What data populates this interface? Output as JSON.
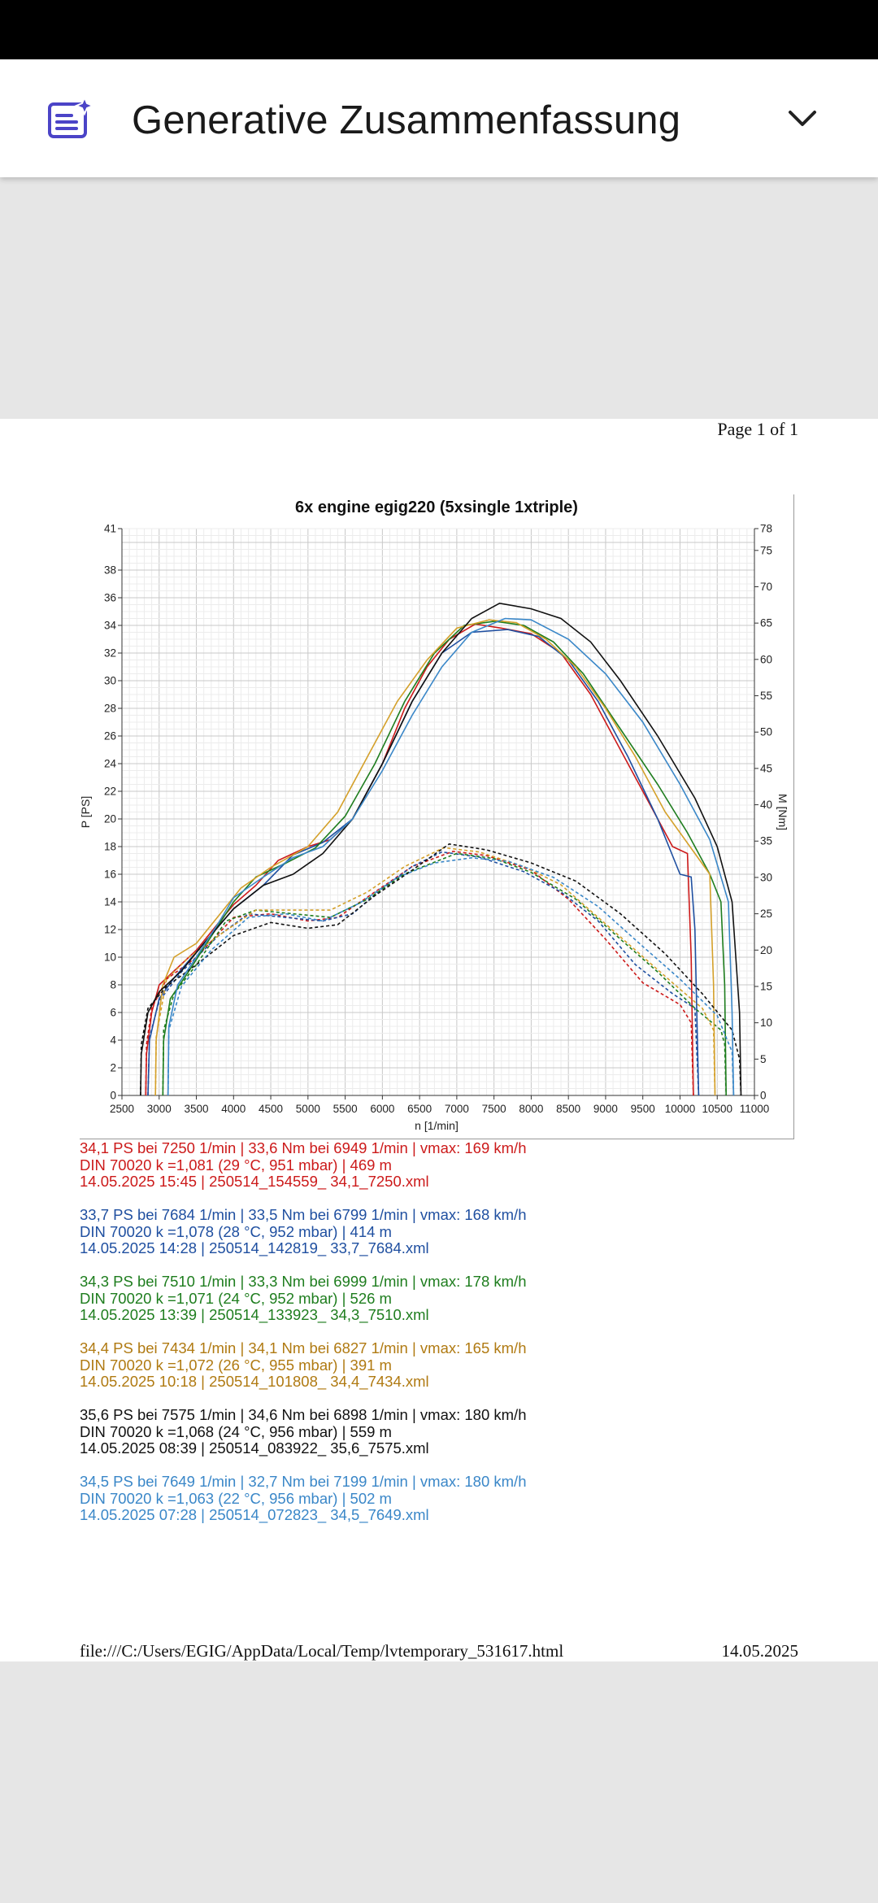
{
  "header": {
    "title": "Generative Zusammenfassung"
  },
  "document": {
    "page_label": "Page 1 of 1",
    "footer_path": "file:///C:/Users/EGIG/AppData/Local/Temp/lvtemporary_531617.html",
    "footer_date": "14.05.2025",
    "entries": [
      {
        "color": "#cc1a1a",
        "line1": "34,1 PS bei 7250 1/min | 33,6 Nm bei 6949 1/min | vmax: 169 km/h",
        "line2": "DIN 70020 k =1,081 (29 °C, 951 mbar) | 469 m",
        "line3": "14.05.2025 15:45 | 250514_154559_ 34,1_7250.xml"
      },
      {
        "color": "#1f4fa0",
        "line1": "33,7 PS bei 7684 1/min | 33,5 Nm bei 6799 1/min | vmax: 168 km/h",
        "line2": "DIN 70020 k =1,078 (28 °C, 952 mbar) | 414 m",
        "line3": "14.05.2025 14:28 | 250514_142819_ 33,7_7684.xml"
      },
      {
        "color": "#1e7d1e",
        "line1": "34,3 PS bei 7510 1/min | 33,3 Nm bei 6999 1/min | vmax: 178 km/h",
        "line2": "DIN 70020 k =1,071 (24 °C, 952 mbar) | 526 m",
        "line3": "14.05.2025 13:39 | 250514_133923_ 34,3_7510.xml"
      },
      {
        "color": "#b07a12",
        "line1": "34,4 PS bei 7434 1/min | 34,1 Nm bei 6827 1/min | vmax: 165 km/h",
        "line2": "DIN 70020 k =1,072 (26 °C, 955 mbar) | 391 m",
        "line3": "14.05.2025 10:18 | 250514_101808_ 34,4_7434.xml"
      },
      {
        "color": "#111111",
        "line1": "35,6 PS bei 7575 1/min | 34,6 Nm bei 6898 1/min | vmax: 180 km/h",
        "line2": "DIN 70020 k =1,068 (24 °C, 956 mbar) | 559 m",
        "line3": "14.05.2025 08:39 | 250514_083922_ 35,6_7575.xml"
      },
      {
        "color": "#3a87c8",
        "line1": "34,5 PS bei 7649 1/min | 32,7 Nm bei 7199 1/min | vmax: 180 km/h",
        "line2": "DIN 70020 k =1,063 (22 °C, 956 mbar) | 502 m",
        "line3": "14.05.2025 07:28 | 250514_072823_ 34,5_7649.xml"
      }
    ]
  },
  "chart_data": {
    "type": "line",
    "title": "6x engine egig220 (5xsingle 1xtriple)",
    "xlabel": "n [1/min]",
    "ylabel": "P [PS]",
    "y2label": "M [Nm]",
    "xlim": [
      2500,
      11000
    ],
    "ylim": [
      0,
      41
    ],
    "y2lim": [
      0,
      78
    ],
    "x_ticks": [
      2500,
      3000,
      3500,
      4000,
      4500,
      5000,
      5500,
      6000,
      6500,
      7000,
      7500,
      8000,
      8500,
      9000,
      9500,
      10000,
      10500,
      11000
    ],
    "y_ticks": [
      0,
      2,
      4,
      6,
      8,
      10,
      12,
      14,
      16,
      18,
      20,
      22,
      24,
      26,
      28,
      30,
      32,
      34,
      36,
      38,
      41
    ],
    "y2_ticks": [
      0,
      5,
      10,
      15,
      20,
      25,
      30,
      35,
      40,
      45,
      50,
      55,
      60,
      65,
      70,
      75,
      78
    ],
    "grid": true,
    "series": [
      {
        "color": "#cc1a1a",
        "power": [
          [
            2820,
            0
          ],
          [
            2830,
            3
          ],
          [
            2900,
            6
          ],
          [
            3000,
            8
          ],
          [
            3200,
            9
          ],
          [
            3500,
            10.5
          ],
          [
            3800,
            12.5
          ],
          [
            4000,
            13.8
          ],
          [
            4300,
            15.2
          ],
          [
            4600,
            17
          ],
          [
            5000,
            18
          ],
          [
            5300,
            18.5
          ],
          [
            5600,
            20
          ],
          [
            6000,
            24
          ],
          [
            6300,
            28
          ],
          [
            6600,
            31
          ],
          [
            6900,
            33
          ],
          [
            7250,
            34.1
          ],
          [
            7600,
            33.8
          ],
          [
            8000,
            33.4
          ],
          [
            8400,
            32
          ],
          [
            8800,
            29
          ],
          [
            9200,
            25
          ],
          [
            9600,
            21
          ],
          [
            9900,
            18
          ],
          [
            10100,
            17.5
          ],
          [
            10150,
            10
          ],
          [
            10180,
            0
          ]
        ],
        "torque": [
          [
            2820,
            0
          ],
          [
            2830,
            7
          ],
          [
            2900,
            12
          ],
          [
            3100,
            16
          ],
          [
            3500,
            19
          ],
          [
            4000,
            24.5
          ],
          [
            4500,
            25
          ],
          [
            5000,
            24
          ],
          [
            5400,
            24.5
          ],
          [
            5900,
            28
          ],
          [
            6400,
            31.5
          ],
          [
            6949,
            33.6
          ],
          [
            7400,
            33
          ],
          [
            8000,
            31
          ],
          [
            8500,
            27
          ],
          [
            9000,
            21.5
          ],
          [
            9500,
            15.5
          ],
          [
            10000,
            12.5
          ],
          [
            10150,
            10
          ],
          [
            10180,
            0
          ]
        ]
      },
      {
        "color": "#1f4fa0",
        "power": [
          [
            2850,
            0
          ],
          [
            2870,
            4
          ],
          [
            3000,
            7
          ],
          [
            3200,
            8.5
          ],
          [
            3600,
            11
          ],
          [
            4000,
            13.5
          ],
          [
            4400,
            15.2
          ],
          [
            4800,
            17.4
          ],
          [
            5200,
            18.3
          ],
          [
            5600,
            20
          ],
          [
            6000,
            24
          ],
          [
            6400,
            28.5
          ],
          [
            6800,
            32
          ],
          [
            7200,
            33.5
          ],
          [
            7684,
            33.7
          ],
          [
            8100,
            33.2
          ],
          [
            8500,
            31.5
          ],
          [
            8900,
            28.5
          ],
          [
            9300,
            24.5
          ],
          [
            9700,
            20
          ],
          [
            10000,
            16
          ],
          [
            10150,
            15.8
          ],
          [
            10200,
            12
          ],
          [
            10250,
            0
          ]
        ],
        "torque": [
          [
            2850,
            0
          ],
          [
            2870,
            8
          ],
          [
            3000,
            13
          ],
          [
            3300,
            17
          ],
          [
            3800,
            22
          ],
          [
            4200,
            25
          ],
          [
            4700,
            24.5
          ],
          [
            5200,
            24
          ],
          [
            5600,
            25
          ],
          [
            6000,
            28.5
          ],
          [
            6400,
            31.5
          ],
          [
            6799,
            33.5
          ],
          [
            7300,
            32.8
          ],
          [
            7900,
            30.8
          ],
          [
            8400,
            28
          ],
          [
            8900,
            24
          ],
          [
            9400,
            18
          ],
          [
            9900,
            14
          ],
          [
            10200,
            12
          ],
          [
            10250,
            0
          ]
        ]
      },
      {
        "color": "#1e7d1e",
        "power": [
          [
            3050,
            0
          ],
          [
            3060,
            4
          ],
          [
            3150,
            7
          ],
          [
            3400,
            9
          ],
          [
            3700,
            11.5
          ],
          [
            4000,
            14
          ],
          [
            4300,
            15.8
          ],
          [
            4700,
            16.8
          ],
          [
            5100,
            17.9
          ],
          [
            5500,
            20.2
          ],
          [
            5900,
            24
          ],
          [
            6300,
            28.5
          ],
          [
            6700,
            32
          ],
          [
            7100,
            34
          ],
          [
            7510,
            34.3
          ],
          [
            7900,
            34
          ],
          [
            8300,
            32.8
          ],
          [
            8700,
            30.5
          ],
          [
            9200,
            26.5
          ],
          [
            9700,
            22.5
          ],
          [
            10100,
            19
          ],
          [
            10400,
            16
          ],
          [
            10550,
            14
          ],
          [
            10600,
            8
          ],
          [
            10620,
            0
          ]
        ],
        "torque": [
          [
            3050,
            0
          ],
          [
            3060,
            9
          ],
          [
            3200,
            14
          ],
          [
            3500,
            18
          ],
          [
            3900,
            24
          ],
          [
            4300,
            25.5
          ],
          [
            4800,
            25
          ],
          [
            5300,
            24.5
          ],
          [
            5800,
            27
          ],
          [
            6300,
            30.5
          ],
          [
            6999,
            33.3
          ],
          [
            7500,
            32.6
          ],
          [
            8000,
            30.7
          ],
          [
            8600,
            27
          ],
          [
            9200,
            21.5
          ],
          [
            9700,
            17
          ],
          [
            10200,
            12
          ],
          [
            10550,
            9
          ],
          [
            10600,
            7
          ],
          [
            10620,
            0
          ]
        ]
      },
      {
        "color": "#d4a02a",
        "power": [
          [
            2950,
            0
          ],
          [
            2960,
            4
          ],
          [
            3050,
            8
          ],
          [
            3200,
            10
          ],
          [
            3500,
            11
          ],
          [
            3800,
            13
          ],
          [
            4100,
            15
          ],
          [
            4500,
            16.5
          ],
          [
            5000,
            18
          ],
          [
            5400,
            20.5
          ],
          [
            5800,
            24.5
          ],
          [
            6200,
            28.5
          ],
          [
            6600,
            31.5
          ],
          [
            7000,
            33.8
          ],
          [
            7434,
            34.4
          ],
          [
            7800,
            34.2
          ],
          [
            8200,
            33
          ],
          [
            8600,
            31
          ],
          [
            9000,
            28
          ],
          [
            9400,
            24.5
          ],
          [
            9800,
            20.5
          ],
          [
            10200,
            17.5
          ],
          [
            10400,
            16
          ],
          [
            10450,
            8
          ],
          [
            10470,
            0
          ]
        ],
        "torque": [
          [
            2950,
            0
          ],
          [
            2960,
            8
          ],
          [
            3100,
            16
          ],
          [
            3400,
            19
          ],
          [
            3800,
            22
          ],
          [
            4300,
            25.5
          ],
          [
            4800,
            25.5
          ],
          [
            5300,
            25.5
          ],
          [
            5800,
            28
          ],
          [
            6300,
            31.5
          ],
          [
            6827,
            34.1
          ],
          [
            7300,
            33.5
          ],
          [
            7900,
            31.5
          ],
          [
            8400,
            29
          ],
          [
            8900,
            24.5
          ],
          [
            9400,
            20
          ],
          [
            9900,
            15.5
          ],
          [
            10300,
            12
          ],
          [
            10450,
            9
          ],
          [
            10470,
            0
          ]
        ]
      },
      {
        "color": "#111111",
        "power": [
          [
            2750,
            0
          ],
          [
            2760,
            3
          ],
          [
            2850,
            6
          ],
          [
            3000,
            7.5
          ],
          [
            3300,
            9
          ],
          [
            3600,
            11
          ],
          [
            4000,
            13.5
          ],
          [
            4400,
            15.2
          ],
          [
            4800,
            16
          ],
          [
            5200,
            17.5
          ],
          [
            5600,
            20
          ],
          [
            6000,
            24
          ],
          [
            6400,
            28.5
          ],
          [
            6800,
            32
          ],
          [
            7200,
            34.5
          ],
          [
            7575,
            35.6
          ],
          [
            8000,
            35.2
          ],
          [
            8400,
            34.5
          ],
          [
            8800,
            32.8
          ],
          [
            9200,
            30
          ],
          [
            9700,
            26
          ],
          [
            10200,
            21.5
          ],
          [
            10500,
            18
          ],
          [
            10700,
            14
          ],
          [
            10800,
            6
          ],
          [
            10820,
            0
          ]
        ],
        "torque": [
          [
            2750,
            0
          ],
          [
            2760,
            7
          ],
          [
            2850,
            12
          ],
          [
            3100,
            15
          ],
          [
            3500,
            18
          ],
          [
            4000,
            22
          ],
          [
            4500,
            23.8
          ],
          [
            5000,
            23
          ],
          [
            5400,
            23.5
          ],
          [
            5900,
            27.5
          ],
          [
            6400,
            31
          ],
          [
            6898,
            34.6
          ],
          [
            7400,
            33.8
          ],
          [
            8000,
            32
          ],
          [
            8600,
            29.5
          ],
          [
            9200,
            25
          ],
          [
            9800,
            19.5
          ],
          [
            10300,
            14
          ],
          [
            10700,
            9
          ],
          [
            10800,
            5
          ],
          [
            10820,
            0
          ]
        ]
      },
      {
        "color": "#3a87c8",
        "power": [
          [
            3120,
            0
          ],
          [
            3130,
            5
          ],
          [
            3250,
            8
          ],
          [
            3500,
            10
          ],
          [
            3800,
            12.5
          ],
          [
            4000,
            14.3
          ],
          [
            4400,
            15.8
          ],
          [
            4800,
            17.2
          ],
          [
            5200,
            18
          ],
          [
            5600,
            20
          ],
          [
            6000,
            23.5
          ],
          [
            6400,
            27.5
          ],
          [
            6800,
            31
          ],
          [
            7200,
            33.5
          ],
          [
            7649,
            34.5
          ],
          [
            8000,
            34.4
          ],
          [
            8500,
            33
          ],
          [
            9000,
            30.5
          ],
          [
            9500,
            27
          ],
          [
            10000,
            22.5
          ],
          [
            10400,
            18.5
          ],
          [
            10650,
            14
          ],
          [
            10700,
            6
          ],
          [
            10720,
            0
          ]
        ],
        "torque": [
          [
            3120,
            0
          ],
          [
            3130,
            9
          ],
          [
            3300,
            15
          ],
          [
            3700,
            20
          ],
          [
            4200,
            24.5
          ],
          [
            4700,
            25
          ],
          [
            5200,
            24
          ],
          [
            5700,
            26.5
          ],
          [
            6200,
            30
          ],
          [
            6700,
            32
          ],
          [
            7199,
            32.7
          ],
          [
            7700,
            32.2
          ],
          [
            8300,
            30
          ],
          [
            8900,
            26
          ],
          [
            9500,
            20.5
          ],
          [
            10000,
            16
          ],
          [
            10500,
            11
          ],
          [
            10700,
            6
          ],
          [
            10720,
            0
          ]
        ]
      }
    ]
  }
}
